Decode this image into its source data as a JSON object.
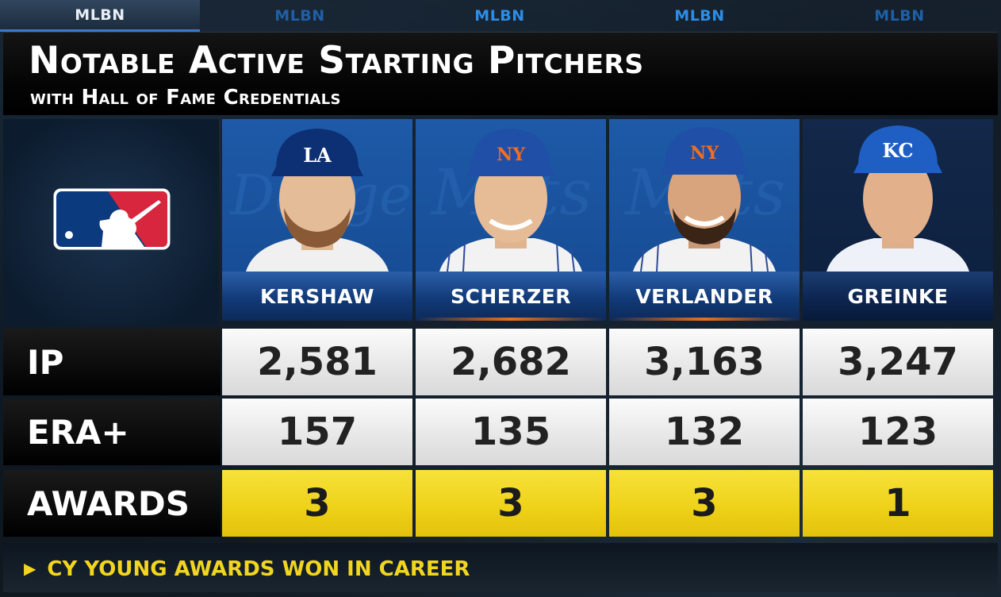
{
  "network_tabs": [
    "MLBN",
    "MLBN",
    "MLBN",
    "MLBN",
    "MLBN"
  ],
  "title": "Notable Active Starting Pitchers",
  "subtitle": "with Hall of Fame Credentials",
  "logo": "mlb-logo",
  "players": [
    {
      "name": "KERSHAW",
      "cap_logo": "LA",
      "team_color": "#1e5aa8"
    },
    {
      "name": "SCHERZER",
      "cap_logo": "NY",
      "team_color": "#1e5aa8"
    },
    {
      "name": "VERLANDER",
      "cap_logo": "NY",
      "team_color": "#1e5aa8"
    },
    {
      "name": "GREINKE",
      "cap_logo": "KC",
      "team_color": "#13284a"
    }
  ],
  "rows": [
    {
      "label": "IP",
      "values": [
        "2,581",
        "2,682",
        "3,163",
        "3,247"
      ]
    },
    {
      "label": "ERA+",
      "values": [
        "157",
        "135",
        "132",
        "123"
      ]
    },
    {
      "label": "AWARDS",
      "values": [
        "3",
        "3",
        "3",
        "1"
      ]
    }
  ],
  "footnote": "CY YOUNG AWARDS WON IN CAREER",
  "colors": {
    "gold": "#efd21a",
    "blue": "#1e5aa8",
    "accent_orange": "#e8701a"
  }
}
